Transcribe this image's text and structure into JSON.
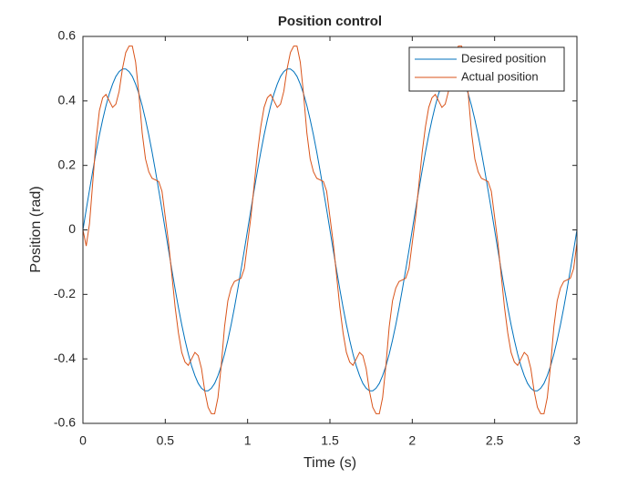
{
  "chart_data": {
    "type": "line",
    "title": "Position control",
    "xlabel": "Time (s)",
    "ylabel": "Position (rad)",
    "x": [
      0,
      0.02,
      0.04,
      0.06,
      0.08,
      0.1,
      0.12,
      0.14,
      0.16,
      0.18,
      0.2,
      0.22,
      0.24,
      0.26,
      0.28,
      0.3,
      0.32,
      0.34,
      0.36,
      0.38,
      0.4,
      0.42,
      0.44,
      0.46,
      0.48,
      0.5,
      0.52,
      0.54,
      0.56,
      0.58,
      0.6,
      0.62,
      0.64,
      0.66,
      0.68,
      0.7,
      0.72,
      0.74,
      0.76,
      0.78,
      0.8,
      0.82,
      0.84,
      0.86,
      0.88,
      0.9,
      0.92,
      0.94,
      0.96,
      0.98,
      1,
      1.02,
      1.04,
      1.06,
      1.08,
      1.1,
      1.12,
      1.14,
      1.16,
      1.18,
      1.2,
      1.22,
      1.24,
      1.26,
      1.28,
      1.3,
      1.32,
      1.34,
      1.36,
      1.38,
      1.4,
      1.42,
      1.44,
      1.46,
      1.48,
      1.5,
      1.52,
      1.54,
      1.56,
      1.58,
      1.6,
      1.62,
      1.64,
      1.66,
      1.68,
      1.7,
      1.72,
      1.74,
      1.76,
      1.78,
      1.8,
      1.82,
      1.84,
      1.86,
      1.88,
      1.9,
      1.92,
      1.94,
      1.96,
      1.98,
      2,
      2.02,
      2.04,
      2.06,
      2.08,
      2.1,
      2.12,
      2.14,
      2.16,
      2.18,
      2.2,
      2.22,
      2.24,
      2.26,
      2.28,
      2.3,
      2.32,
      2.34,
      2.36,
      2.38,
      2.4,
      2.42,
      2.44,
      2.46,
      2.48,
      2.5,
      2.52,
      2.54,
      2.56,
      2.58,
      2.6,
      2.62,
      2.64,
      2.66,
      2.68,
      2.7,
      2.72,
      2.74,
      2.76,
      2.78,
      2.8,
      2.82,
      2.84,
      2.86,
      2.88,
      2.9,
      2.92,
      2.94,
      2.96,
      2.98,
      3
    ],
    "series": [
      {
        "name": "Desired position",
        "color": "#0072bd",
        "values": [
          0,
          0.063,
          0.124,
          0.184,
          0.241,
          0.294,
          0.342,
          0.385,
          0.422,
          0.452,
          0.476,
          0.491,
          0.499,
          0.499,
          0.491,
          0.476,
          0.452,
          0.422,
          0.385,
          0.342,
          0.294,
          0.241,
          0.184,
          0.124,
          0.063,
          0,
          -0.063,
          -0.124,
          -0.184,
          -0.241,
          -0.294,
          -0.342,
          -0.385,
          -0.422,
          -0.452,
          -0.476,
          -0.491,
          -0.499,
          -0.499,
          -0.491,
          -0.476,
          -0.452,
          -0.422,
          -0.385,
          -0.342,
          -0.294,
          -0.241,
          -0.184,
          -0.124,
          -0.063,
          0,
          0.063,
          0.124,
          0.184,
          0.241,
          0.294,
          0.342,
          0.385,
          0.422,
          0.452,
          0.476,
          0.491,
          0.499,
          0.499,
          0.491,
          0.476,
          0.452,
          0.422,
          0.385,
          0.342,
          0.294,
          0.241,
          0.184,
          0.124,
          0.063,
          0,
          -0.063,
          -0.124,
          -0.184,
          -0.241,
          -0.294,
          -0.342,
          -0.385,
          -0.422,
          -0.452,
          -0.476,
          -0.491,
          -0.499,
          -0.499,
          -0.491,
          -0.476,
          -0.452,
          -0.422,
          -0.385,
          -0.342,
          -0.294,
          -0.241,
          -0.184,
          -0.124,
          -0.063,
          0,
          0.063,
          0.124,
          0.184,
          0.241,
          0.294,
          0.342,
          0.385,
          0.422,
          0.452,
          0.476,
          0.491,
          0.499,
          0.499,
          0.491,
          0.476,
          0.452,
          0.422,
          0.385,
          0.342,
          0.294,
          0.241,
          0.184,
          0.124,
          0.063,
          0,
          -0.063,
          -0.124,
          -0.184,
          -0.241,
          -0.294,
          -0.342,
          -0.385,
          -0.422,
          -0.452,
          -0.476,
          -0.491,
          -0.499,
          -0.499,
          -0.491,
          -0.476,
          -0.452,
          -0.422,
          -0.385,
          -0.342,
          -0.294,
          -0.241,
          -0.184,
          -0.124,
          -0.063,
          0
        ]
      },
      {
        "name": "Actual position",
        "color": "#d95319",
        "values": [
          0,
          -0.05,
          0.02,
          0.15,
          0.28,
          0.37,
          0.41,
          0.42,
          0.4,
          0.38,
          0.39,
          0.43,
          0.5,
          0.55,
          0.57,
          0.57,
          0.52,
          0.42,
          0.3,
          0.22,
          0.18,
          0.16,
          0.155,
          0.15,
          0.12,
          0.04,
          -0.04,
          -0.14,
          -0.24,
          -0.32,
          -0.38,
          -0.41,
          -0.42,
          -0.4,
          -0.38,
          -0.39,
          -0.43,
          -0.5,
          -0.55,
          -0.57,
          -0.57,
          -0.52,
          -0.42,
          -0.3,
          -0.22,
          -0.18,
          -0.16,
          -0.155,
          -0.15,
          -0.12,
          -0.04,
          0.04,
          0.14,
          0.24,
          0.32,
          0.38,
          0.41,
          0.42,
          0.4,
          0.38,
          0.39,
          0.43,
          0.5,
          0.55,
          0.57,
          0.57,
          0.52,
          0.42,
          0.3,
          0.22,
          0.18,
          0.16,
          0.155,
          0.15,
          0.12,
          0.04,
          -0.04,
          -0.14,
          -0.24,
          -0.32,
          -0.38,
          -0.41,
          -0.42,
          -0.4,
          -0.38,
          -0.39,
          -0.43,
          -0.5,
          -0.55,
          -0.57,
          -0.57,
          -0.52,
          -0.42,
          -0.3,
          -0.22,
          -0.18,
          -0.16,
          -0.155,
          -0.15,
          -0.12,
          -0.04,
          0.04,
          0.14,
          0.24,
          0.32,
          0.38,
          0.41,
          0.42,
          0.4,
          0.38,
          0.39,
          0.43,
          0.5,
          0.55,
          0.57,
          0.57,
          0.52,
          0.42,
          0.3,
          0.22,
          0.18,
          0.16,
          0.155,
          0.15,
          0.12,
          0.04,
          -0.04,
          -0.14,
          -0.24,
          -0.32,
          -0.38,
          -0.41,
          -0.42,
          -0.4,
          -0.38,
          -0.39,
          -0.43,
          -0.5,
          -0.55,
          -0.57,
          -0.57,
          -0.52,
          -0.42,
          -0.3,
          -0.22,
          -0.18,
          -0.16,
          -0.155,
          -0.15,
          -0.12,
          -0.04
        ]
      }
    ],
    "xlim": [
      0,
      3
    ],
    "xticks": [
      0,
      0.5,
      1,
      1.5,
      2,
      2.5,
      3
    ],
    "ylim": [
      -0.6,
      0.6
    ],
    "yticks": [
      -0.6,
      -0.4,
      -0.2,
      0,
      0.2,
      0.4,
      0.6
    ],
    "grid": false,
    "legend": "top-right"
  }
}
